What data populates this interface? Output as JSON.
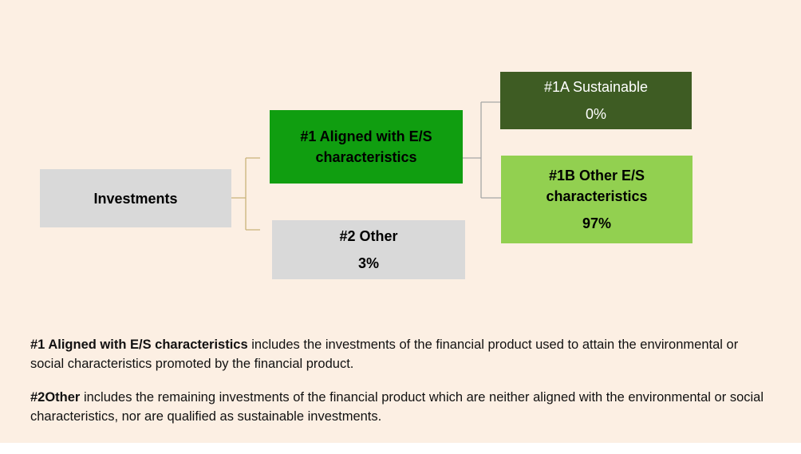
{
  "nodes": [
    {
      "label": "Investments"
    },
    {
      "label": "#1 Aligned with E/S characteristics"
    },
    {
      "label": "#2 Other",
      "value": "3%"
    },
    {
      "label": "#1A Sustainable",
      "value": "0%"
    },
    {
      "label": "#1B Other E/S characteristics",
      "value": "97%"
    }
  ],
  "notes": [
    {
      "term": "#1 Aligned with E/S characteristics",
      "text": " includes the investments of the financial product used to attain the environmental or social characteristics promoted by the financial product."
    },
    {
      "term": "#2Other",
      "text": " includes the remaining investments of the financial product which are neither aligned with the environmental or social characteristics, nor are qualified as sustainable investments."
    }
  ]
}
